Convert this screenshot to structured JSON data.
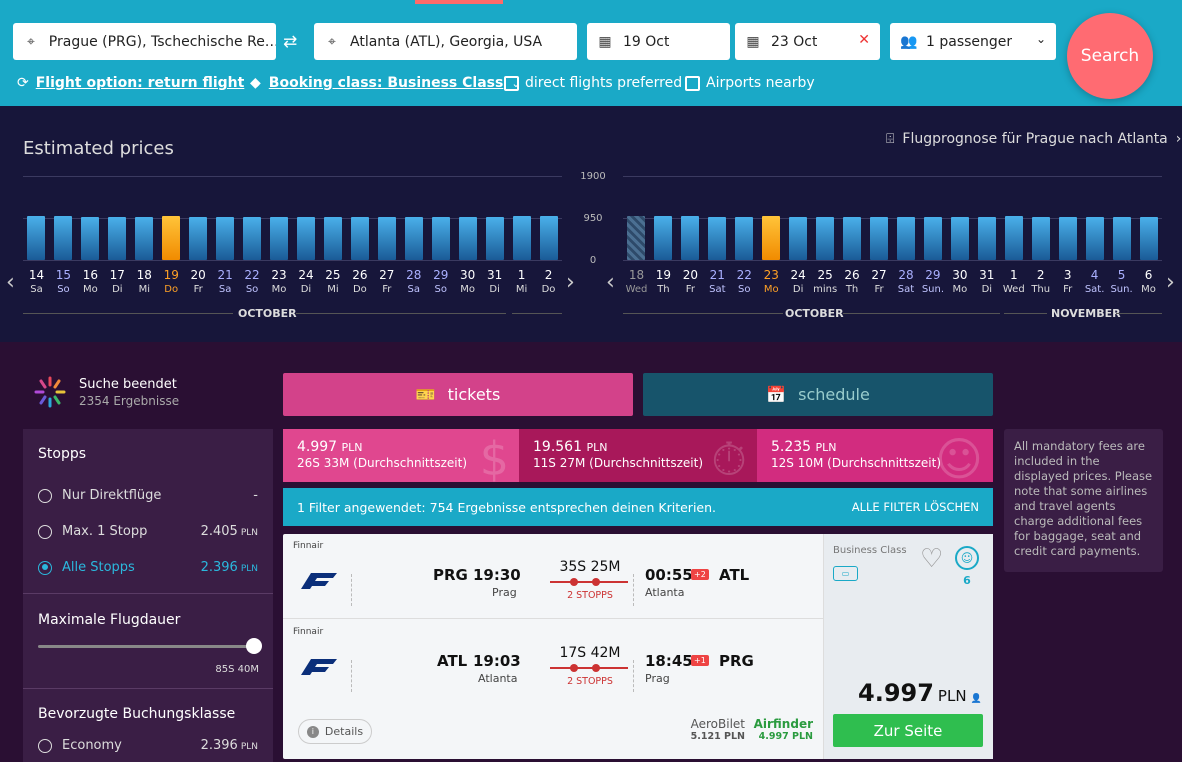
{
  "search": {
    "from": "Prague (PRG), Tschechische Re…",
    "to": "Atlanta (ATL), Georgia, USA",
    "depart": "19 Oct",
    "return": "23 Oct",
    "passengers": "1 passenger",
    "search_label": "Search"
  },
  "options": {
    "flight_option": "Flight option: return flight",
    "booking_class": "Booking class: Business Class",
    "direct": "direct flights preferred",
    "nearby": "Airports nearby"
  },
  "chart": {
    "title": "Estimated prices",
    "forecast": "Flugprognose für Prague nach Atlanta",
    "yticks": [
      "1900",
      "950",
      "0"
    ]
  },
  "chart_data": [
    {
      "type": "bar",
      "title": "OCTOBER",
      "categories": [
        "14",
        "15",
        "16",
        "17",
        "18",
        "19",
        "20",
        "21",
        "22",
        "23",
        "24",
        "25",
        "26",
        "27",
        "28",
        "29",
        "30",
        "31",
        "1",
        "2"
      ],
      "days": [
        "Sa",
        "So",
        "Mo",
        "Di",
        "Mi",
        "Do",
        "Fr",
        "Sa",
        "So",
        "Mo",
        "Di",
        "Mi",
        "Do",
        "Fr",
        "Sa",
        "So",
        "Mo",
        "Di",
        "Mi",
        "Do"
      ],
      "weekend": [
        false,
        true,
        false,
        false,
        false,
        false,
        false,
        true,
        true,
        false,
        false,
        false,
        false,
        false,
        true,
        true,
        false,
        false,
        false,
        false
      ],
      "values": [
        1000,
        1000,
        980,
        980,
        980,
        1000,
        980,
        980,
        980,
        980,
        980,
        980,
        980,
        980,
        980,
        980,
        980,
        980,
        1000,
        1000
      ],
      "selected": 5,
      "ylim": [
        0,
        1900
      ]
    },
    {
      "type": "bar",
      "title": "OCTOBER",
      "title2": "NOVEMBER",
      "categories": [
        "18",
        "19",
        "20",
        "21",
        "22",
        "23",
        "24",
        "25",
        "26",
        "27",
        "28",
        "29",
        "30",
        "31",
        "1",
        "2",
        "3",
        "4",
        "5",
        "6"
      ],
      "days": [
        "Wed",
        "Th",
        "Fr",
        "Sat",
        "So",
        "Mo",
        "Di",
        "mins",
        "Th",
        "Fr",
        "Sat",
        "Sun.",
        "Mo",
        "Di",
        "Wed",
        "Thu",
        "Fr",
        "Sat.",
        "Sun.",
        "Mo"
      ],
      "weekend": [
        false,
        false,
        false,
        true,
        true,
        false,
        false,
        false,
        false,
        false,
        true,
        true,
        false,
        false,
        false,
        false,
        false,
        true,
        true,
        false
      ],
      "values": [
        1000,
        1000,
        1000,
        980,
        980,
        1000,
        980,
        980,
        980,
        980,
        980,
        980,
        980,
        980,
        1000,
        980,
        980,
        980,
        980,
        980
      ],
      "selected": 5,
      "estimated": 0,
      "ylim": [
        0,
        1900
      ]
    }
  ],
  "status": {
    "line1": "Suche beendet",
    "line2": "2354 Ergebnisse"
  },
  "filters": {
    "stops_title": "Stopps",
    "stops": [
      {
        "label": "Nur Direktflüge",
        "price": "-",
        "unit": ""
      },
      {
        "label": "Max. 1 Stopp",
        "price": "2.405",
        "unit": "PLN"
      },
      {
        "label": "Alle Stopps",
        "price": "2.396",
        "unit": "PLN"
      }
    ],
    "duration_title": "Maximale Flugdauer",
    "duration_value": "85S 40M",
    "class_title": "Bevorzugte Buchungsklasse",
    "class_item": "Economy",
    "class_price": "2.396",
    "class_unit": "PLN"
  },
  "tabs": {
    "tickets": "tickets",
    "schedule": "schedule"
  },
  "summary": [
    {
      "price": "4.997",
      "unit": "PLN",
      "sub": "26S 33M (Durchschnittszeit)",
      "color": "#e0478f"
    },
    {
      "price": "19.561",
      "unit": "PLN",
      "sub": "11S 27M (Durchschnittszeit)",
      "color": "#a8185a"
    },
    {
      "price": "5.235",
      "unit": "PLN",
      "sub": "12S 10M (Durchschnittszeit)",
      "color": "#d22c7f"
    }
  ],
  "filterbar": {
    "text": "1 Filter angewendet: 754 Ergebnisse entsprechen deinen Kriterien.",
    "clear": "ALLE FILTER LÖSCHEN"
  },
  "info": "All mandatory fees are included in the displayed prices. Please note that some airlines and travel agents charge additional fees for baggage, seat and credit card payments.",
  "result": {
    "legs": [
      {
        "carrier": "Finnair",
        "from": "PRG",
        "dep": "19:30",
        "from_city": "Prag",
        "duration": "35S 25M",
        "stops": "2 STOPPS",
        "arr": "00:55",
        "plus": "+2",
        "to": "ATL",
        "to_city": "Atlanta"
      },
      {
        "carrier": "Finnair",
        "from": "ATL",
        "dep": "19:03",
        "from_city": "Atlanta",
        "duration": "17S 42M",
        "stops": "2 STOPPS",
        "arr": "18:45",
        "plus": "+1",
        "to": "PRG",
        "to_city": "Prag"
      }
    ],
    "details": "Details",
    "agents": [
      {
        "name": "AeroBilet",
        "price": "5.121 PLN"
      },
      {
        "name": "Airfinder",
        "price": "4.997 PLN"
      }
    ],
    "class": "Business Class",
    "rating": "6",
    "price": "4.997",
    "unit": "PLN",
    "cta": "Zur Seite"
  }
}
